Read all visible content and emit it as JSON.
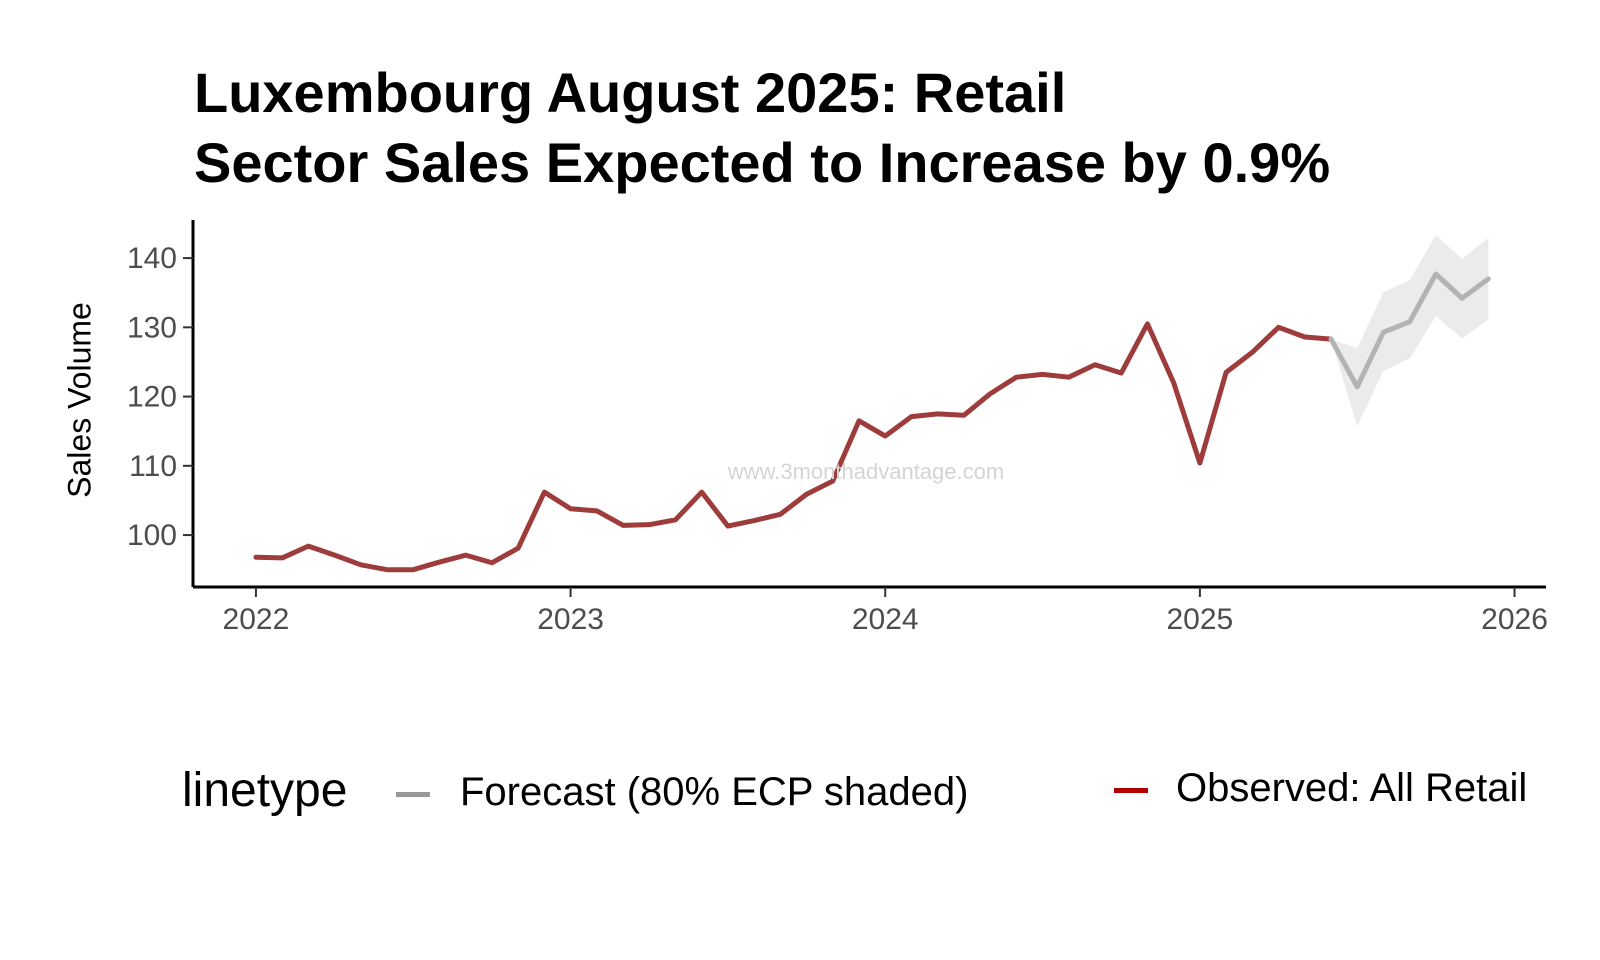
{
  "chart_data": {
    "type": "line",
    "title_lines": [
      "Luxembourg August 2025: Retail",
      "Sector Sales Expected to Increase by 0.9%"
    ],
    "xlabel": "",
    "ylabel": "Sales Volume",
    "x_ticks": [
      "2022",
      "2023",
      "2024",
      "2025",
      "2026"
    ],
    "y_ticks": [
      100,
      110,
      120,
      130,
      140
    ],
    "xlim": [
      2021.8,
      2026.1
    ],
    "ylim": [
      92.5,
      145.5
    ],
    "grid": false,
    "legend": {
      "title": "linetype",
      "position": "bottom",
      "entries": [
        {
          "label": "Forecast (80% ECP shaded)",
          "color": "#999999"
        },
        {
          "label": "Observed: All Retail",
          "color": "#b20000"
        }
      ]
    },
    "watermark": "www.3monthadvantage.com",
    "series": [
      {
        "name": "Observed: All Retail",
        "color": "#9e3c3c",
        "x": [
          "2022-01",
          "2022-02",
          "2022-03",
          "2022-04",
          "2022-05",
          "2022-06",
          "2022-07",
          "2022-08",
          "2022-09",
          "2022-10",
          "2022-11",
          "2022-12",
          "2023-01",
          "2023-02",
          "2023-03",
          "2023-04",
          "2023-05",
          "2023-06",
          "2023-07",
          "2023-08",
          "2023-09",
          "2023-10",
          "2023-11",
          "2023-12",
          "2024-01",
          "2024-02",
          "2024-03",
          "2024-04",
          "2024-05",
          "2024-06",
          "2024-07",
          "2024-08",
          "2024-09",
          "2024-10",
          "2024-11",
          "2024-12",
          "2025-01",
          "2025-02",
          "2025-03",
          "2025-04",
          "2025-05",
          "2025-06"
        ],
        "values": [
          96.8,
          96.7,
          98.4,
          97.1,
          95.7,
          95.0,
          95.0,
          96.1,
          97.1,
          96.0,
          98.1,
          106.2,
          103.8,
          103.5,
          101.4,
          101.5,
          102.2,
          106.2,
          101.3,
          102.1,
          103.0,
          105.9,
          107.8,
          116.5,
          114.3,
          117.1,
          117.5,
          117.3,
          120.4,
          122.8,
          123.2,
          122.8,
          124.6,
          123.4,
          130.5,
          122.0,
          110.4,
          123.5,
          126.4,
          130.0,
          128.6,
          128.3
        ]
      },
      {
        "name": "Forecast (80% ECP shaded)",
        "color": "#b3b3b3",
        "x": [
          "2025-06",
          "2025-07",
          "2025-08",
          "2025-09",
          "2025-10",
          "2025-11",
          "2025-12"
        ],
        "values": [
          128.3,
          121.4,
          129.3,
          130.8,
          137.7,
          134.2,
          137.0
        ],
        "lower": [
          128.3,
          115.7,
          123.7,
          125.5,
          131.6,
          128.4,
          131.1
        ],
        "upper": [
          128.3,
          127.0,
          135.1,
          136.8,
          143.3,
          139.9,
          142.9
        ]
      }
    ]
  }
}
